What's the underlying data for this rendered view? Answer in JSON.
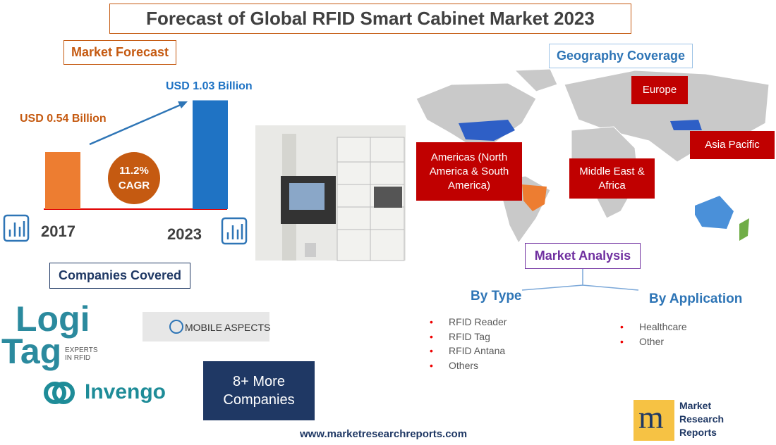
{
  "header": {
    "title": "Forecast of Global RFID Smart Cabinet Market 2023"
  },
  "forecast": {
    "heading": "Market Forecast",
    "bars": [
      {
        "year": "2017",
        "value": 0.54,
        "label": "USD 0.54 Billion",
        "color": "#ed7d31"
      },
      {
        "year": "2023",
        "value": 1.03,
        "label": "USD 1.03 Billion",
        "color": "#1f73c4"
      }
    ],
    "cagr": [
      "11.2%",
      "CAGR"
    ]
  },
  "geography": {
    "heading": "Geography Coverage",
    "regions": [
      "Europe",
      "Asia Pacific",
      "Americas (North America & South America)",
      "Middle East & Africa"
    ]
  },
  "companies": {
    "heading": "Companies Covered",
    "logos": [
      "Logi",
      "Tag",
      "EXPERTS IN RFID",
      "MOBILE ASPECTS",
      "Invengo"
    ],
    "more": "8+ More Companies"
  },
  "analysis": {
    "heading": "Market Analysis",
    "by_type": {
      "title": "By Type",
      "items": [
        "RFID Reader",
        "RFID Tag",
        "RFID Antana",
        "Others"
      ]
    },
    "by_application": {
      "title": "By Application",
      "items": [
        "Healthcare",
        "Other"
      ]
    }
  },
  "footer": {
    "url": "www.marketresearchreports.com",
    "brand_letter": "m",
    "brand": [
      "Market",
      "Research",
      "Reports"
    ]
  }
}
